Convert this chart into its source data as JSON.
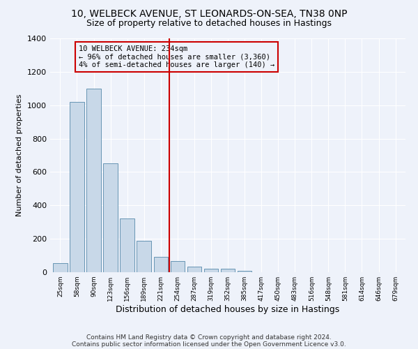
{
  "title_line1": "10, WELBECK AVENUE, ST LEONARDS-ON-SEA, TN38 0NP",
  "title_line2": "Size of property relative to detached houses in Hastings",
  "xlabel": "Distribution of detached houses by size in Hastings",
  "ylabel": "Number of detached properties",
  "bar_labels": [
    "25sqm",
    "58sqm",
    "90sqm",
    "123sqm",
    "156sqm",
    "189sqm",
    "221sqm",
    "254sqm",
    "287sqm",
    "319sqm",
    "352sqm",
    "385sqm",
    "417sqm",
    "450sqm",
    "483sqm",
    "516sqm",
    "548sqm",
    "581sqm",
    "614sqm",
    "646sqm",
    "679sqm"
  ],
  "bar_values": [
    55,
    1020,
    1100,
    650,
    320,
    190,
    90,
    65,
    35,
    22,
    22,
    10,
    0,
    0,
    0,
    0,
    0,
    0,
    0,
    0,
    0
  ],
  "bar_color": "#c8d8e8",
  "bar_edge_color": "#5588aa",
  "vline_x": 6.5,
  "vline_color": "#cc0000",
  "annotation_text": "10 WELBECK AVENUE: 234sqm\n← 96% of detached houses are smaller (3,360)\n4% of semi-detached houses are larger (140) →",
  "ylim": [
    0,
    1400
  ],
  "yticks": [
    0,
    200,
    400,
    600,
    800,
    1000,
    1200,
    1400
  ],
  "footnote1": "Contains HM Land Registry data © Crown copyright and database right 2024.",
  "footnote2": "Contains public sector information licensed under the Open Government Licence v3.0.",
  "bg_color": "#eef2fa",
  "grid_color": "#ffffff",
  "title_fontsize": 10,
  "subtitle_fontsize": 9,
  "ylabel_fontsize": 8,
  "xlabel_fontsize": 9
}
